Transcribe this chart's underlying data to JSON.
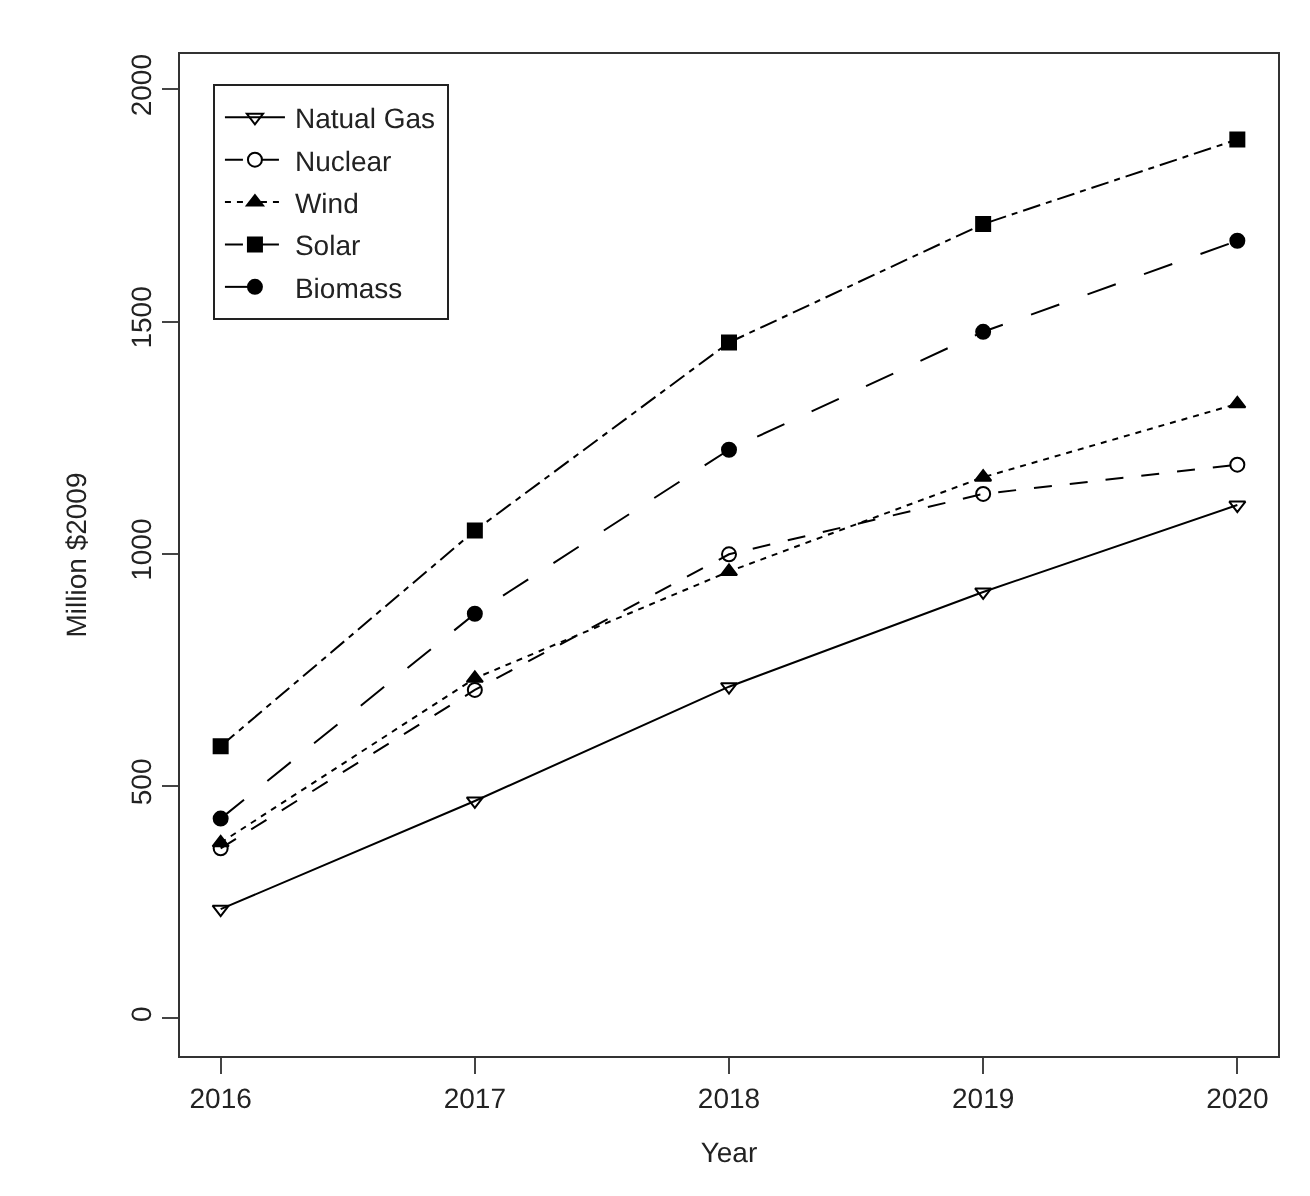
{
  "chart_data": {
    "type": "line",
    "xlabel": "Year",
    "ylabel": "Million $2009",
    "x": [
      2016,
      2017,
      2018,
      2019,
      2020
    ],
    "series": [
      {
        "name": "Natual Gas",
        "color": "#000000",
        "marker": "triangle-down-open",
        "line_style": "solid",
        "values": [
          235,
          468,
          714,
          918,
          1105
        ]
      },
      {
        "name": "Nuclear",
        "color": "#000000",
        "marker": "circle-open",
        "line_style": "dashed",
        "values": [
          366,
          707,
          999,
          1129,
          1192
        ]
      },
      {
        "name": "Wind",
        "color": "#000000",
        "marker": "triangle",
        "line_style": "dotted",
        "values": [
          378,
          732,
          962,
          1165,
          1323
        ]
      },
      {
        "name": "Solar",
        "color": "#000000",
        "marker": "square",
        "line_style": "dashdot",
        "values": [
          586,
          1050,
          1455,
          1710,
          1892
        ]
      },
      {
        "name": "Biomass",
        "color": "#000000",
        "marker": "circle",
        "line_style": "longdash",
        "values": [
          430,
          871,
          1224,
          1478,
          1674
        ]
      }
    ],
    "xlim": [
      2015.84,
      2020.16
    ],
    "xticks": [
      2016,
      2017,
      2018,
      2019,
      2020
    ],
    "ylim": [
      -81,
      2076
    ],
    "yticks": [
      0,
      500,
      1000,
      1500,
      2000
    ],
    "legend": "top left"
  }
}
